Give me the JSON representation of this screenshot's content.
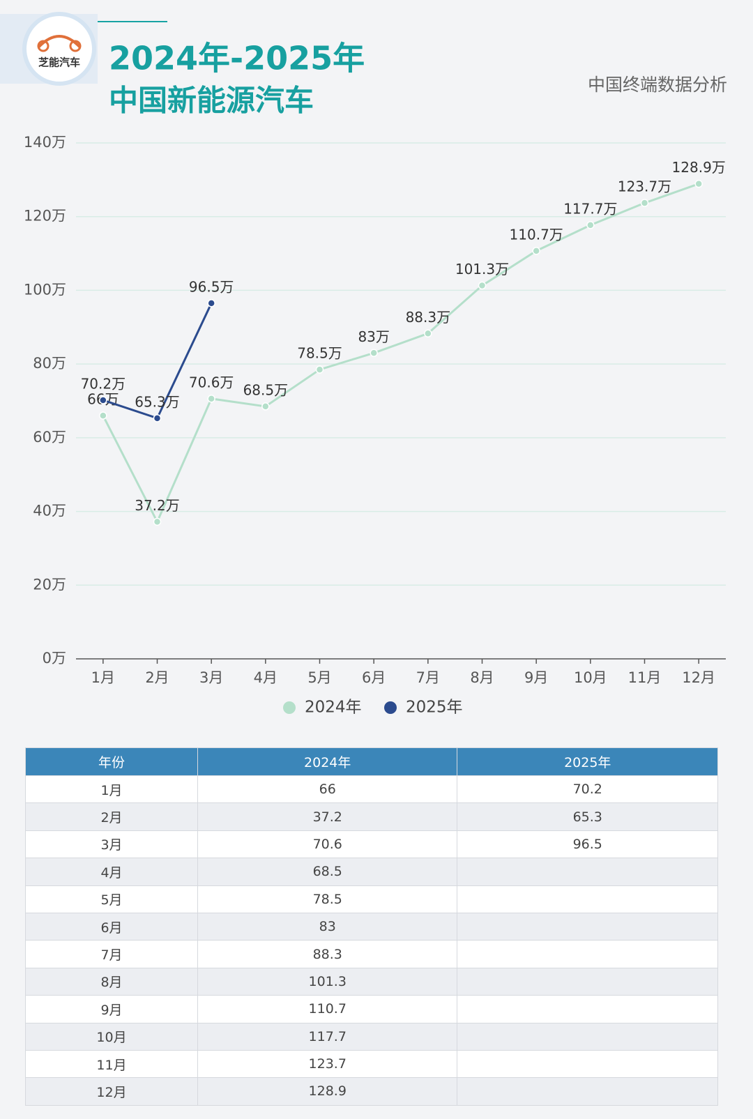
{
  "header": {
    "logo": "芝能汽车",
    "title_line1": "2024年-2025年",
    "title_line2": "中国新能源汽车",
    "subtitle": "中国终端数据分析"
  },
  "chart_data": {
    "type": "line",
    "categories": [
      "1月",
      "2月",
      "3月",
      "4月",
      "5月",
      "6月",
      "7月",
      "8月",
      "9月",
      "10月",
      "11月",
      "12月"
    ],
    "series": [
      {
        "name": "2024年",
        "color": "#b4dfca",
        "values": [
          66,
          37.2,
          70.6,
          68.5,
          78.5,
          83,
          88.3,
          101.3,
          110.7,
          117.7,
          123.7,
          128.9
        ],
        "value_labels": [
          "66万",
          "37.2万",
          "70.6万",
          "68.5万",
          "78.5万",
          "83万",
          "88.3万",
          "101.3万",
          "110.7万",
          "117.7万",
          "123.7万",
          "128.9万"
        ]
      },
      {
        "name": "2025年",
        "color": "#2b4b8e",
        "values": [
          70.2,
          65.3,
          96.5,
          null,
          null,
          null,
          null,
          null,
          null,
          null,
          null,
          null
        ],
        "value_labels": [
          "70.2万",
          "65.3万",
          "96.5万",
          null,
          null,
          null,
          null,
          null,
          null,
          null,
          null,
          null
        ]
      }
    ],
    "ylim": [
      0,
      140
    ],
    "yticks": [
      {
        "value": 0,
        "label": "0万"
      },
      {
        "value": 20,
        "label": "20万"
      },
      {
        "value": 40,
        "label": "40万"
      },
      {
        "value": 60,
        "label": "60万"
      },
      {
        "value": 80,
        "label": "80万"
      },
      {
        "value": 100,
        "label": "100万"
      },
      {
        "value": 120,
        "label": "120万"
      },
      {
        "value": 140,
        "label": "140万"
      }
    ],
    "grid": true,
    "legend": "bottom"
  },
  "table": {
    "header": [
      "年份",
      "2024年",
      "2025年"
    ],
    "rows": [
      [
        "1月",
        "66",
        "70.2"
      ],
      [
        "2月",
        "37.2",
        "65.3"
      ],
      [
        "3月",
        "70.6",
        "96.5"
      ],
      [
        "4月",
        "68.5"
      ],
      [
        "5月",
        "78.5"
      ],
      [
        "6月",
        "83"
      ],
      [
        "7月",
        "88.3"
      ],
      [
        "8月",
        "101.3"
      ],
      [
        "9月",
        "110.7"
      ],
      [
        "10月",
        "117.7"
      ],
      [
        "11月",
        "123.7"
      ],
      [
        "12月",
        "128.9"
      ]
    ]
  }
}
